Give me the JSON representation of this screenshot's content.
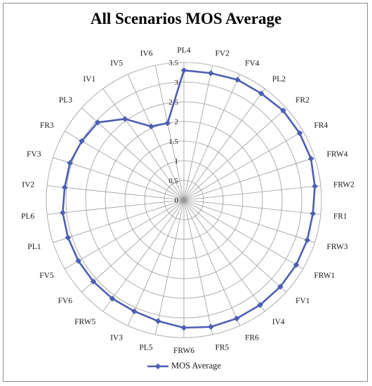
{
  "chart_data": {
    "type": "radar",
    "title": "All Scenarios MOS Average",
    "categories": [
      "PL4",
      "FV2",
      "FV4",
      "PL2",
      "FR2",
      "FR4",
      "FRW4",
      "FRW2",
      "FR1",
      "FRW3",
      "FRW1",
      "FV1",
      "IV4",
      "FR6",
      "FR5",
      "FRW6",
      "PL5",
      "IV3",
      "FRW5",
      "FV6",
      "FV5",
      "PL1",
      "PL6",
      "IV2",
      "FV3",
      "FR3",
      "PL3",
      "IV1",
      "IV5",
      "IV6"
    ],
    "series": [
      {
        "name": "MOS Average",
        "color": "#4a5fb4",
        "values": [
          3.3,
          3.3,
          3.35,
          3.35,
          3.4,
          3.4,
          3.4,
          3.35,
          3.3,
          3.3,
          3.3,
          3.3,
          3.3,
          3.3,
          3.3,
          3.25,
          3.15,
          3.1,
          3.1,
          3.1,
          3.1,
          3.1,
          3.1,
          3.05,
          3.05,
          3.0,
          2.95,
          2.55,
          2.05,
          2.0
        ]
      }
    ],
    "rlim": [
      0,
      3.5
    ],
    "ticks": [
      "0",
      "0.5",
      "1",
      "1.5",
      "2",
      "2.5",
      "3",
      "3.5"
    ],
    "grid": true,
    "legend_position": "bottom"
  }
}
